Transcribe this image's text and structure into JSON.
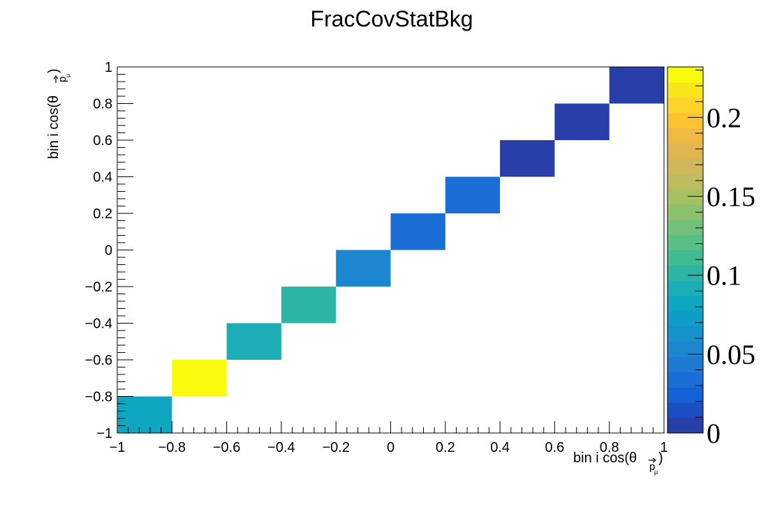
{
  "chart_data": {
    "type": "heatmap",
    "title": "FracCovStatBkg",
    "xlabel": "bin i cos(θ",
    "ylabel": "bin i cos(θ",
    "axis_label_subscript": "p",
    "axis_label_subsubscript": "μ",
    "axis_label_close": ")",
    "xlim": [
      -1,
      1
    ],
    "ylim": [
      -1,
      1
    ],
    "xticks": [
      "−1",
      "−0.8",
      "−0.6",
      "−0.4",
      "−0.2",
      "0",
      "0.2",
      "0.4",
      "0.6",
      "0.8",
      "1"
    ],
    "xtick_values": [
      -1,
      -0.8,
      -0.6,
      -0.4,
      -0.2,
      0,
      0.2,
      0.4,
      0.6,
      0.8,
      1
    ],
    "yticks": [
      "−1",
      "−0.8",
      "−0.6",
      "−0.4",
      "−0.2",
      "0",
      "0.2",
      "0.4",
      "0.6",
      "0.8",
      "1"
    ],
    "ytick_values": [
      -1,
      -0.8,
      -0.6,
      -0.4,
      -0.2,
      0,
      0.2,
      0.4,
      0.6,
      0.8,
      1
    ],
    "grid": false,
    "zlim": [
      0,
      0.232
    ],
    "colorbar_ticks": [
      "0",
      "0.05",
      "0.1",
      "0.15",
      "0.2"
    ],
    "colorbar_tick_values": [
      0,
      0.05,
      0.1,
      0.15,
      0.2
    ],
    "cells": [
      {
        "x": [
          -1.0,
          -0.8
        ],
        "y": [
          -1.0,
          -0.8
        ],
        "value": 0.085
      },
      {
        "x": [
          -0.8,
          -0.6
        ],
        "y": [
          -0.8,
          -0.6
        ],
        "value": 0.232
      },
      {
        "x": [
          -0.6,
          -0.4
        ],
        "y": [
          -0.6,
          -0.4
        ],
        "value": 0.09
      },
      {
        "x": [
          -0.4,
          -0.2
        ],
        "y": [
          -0.4,
          -0.2
        ],
        "value": 0.105
      },
      {
        "x": [
          -0.2,
          0.0
        ],
        "y": [
          -0.2,
          0.0
        ],
        "value": 0.05
      },
      {
        "x": [
          0.0,
          0.2
        ],
        "y": [
          0.0,
          0.2
        ],
        "value": 0.03
      },
      {
        "x": [
          0.2,
          0.4
        ],
        "y": [
          0.2,
          0.4
        ],
        "value": 0.03
      },
      {
        "x": [
          0.4,
          0.6
        ],
        "y": [
          0.4,
          0.6
        ],
        "value": 0.003
      },
      {
        "x": [
          0.6,
          0.8
        ],
        "y": [
          0.6,
          0.8
        ],
        "value": 0.004
      },
      {
        "x": [
          0.8,
          1.0
        ],
        "y": [
          0.8,
          1.0
        ],
        "value": 0.004
      }
    ],
    "palette": [
      "#283ea8",
      "#1a4ec2",
      "#1462d6",
      "#1a6ed6",
      "#1e7ad2",
      "#1c86d0",
      "#1592cb",
      "#0e9cc8",
      "#0fa6c2",
      "#1cadb6",
      "#2cb5a4",
      "#40bb94",
      "#58bf86",
      "#73c07a",
      "#8ec16e",
      "#a8c064",
      "#bdbc5e",
      "#d0b85a",
      "#dfb74e",
      "#f0b942",
      "#fbc232",
      "#fcd42a",
      "#f8e61c",
      "#f9fb0e"
    ]
  }
}
